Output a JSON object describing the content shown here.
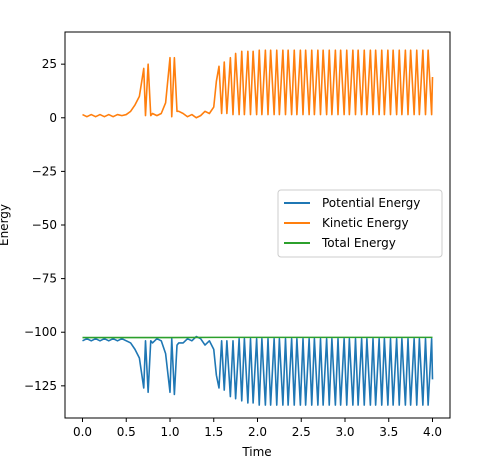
{
  "chart_data": {
    "type": "line",
    "title": "",
    "xlabel": "Time",
    "ylabel": "Energy",
    "xlim": [
      -0.2,
      4.2
    ],
    "ylim": [
      -140,
      40
    ],
    "x_ticks": [
      0.0,
      0.5,
      1.0,
      1.5,
      2.0,
      2.5,
      3.0,
      3.5,
      4.0
    ],
    "x_tick_labels": [
      "0.0",
      "0.5",
      "1.0",
      "1.5",
      "2.0",
      "2.5",
      "3.0",
      "3.5",
      "4.0"
    ],
    "y_ticks": [
      25,
      0,
      -25,
      -50,
      -75,
      -100,
      -125
    ],
    "y_tick_labels": [
      "25",
      "0",
      "−25",
      "−50",
      "−75",
      "−100",
      "−125"
    ],
    "grid": false,
    "legend_position": "center-right",
    "series": [
      {
        "name": "Potential Energy",
        "color": "#1f77b4",
        "x": [
          0.0,
          0.05,
          0.1,
          0.15,
          0.2,
          0.25,
          0.3,
          0.35,
          0.4,
          0.45,
          0.5,
          0.55,
          0.6,
          0.65,
          0.7,
          0.72,
          0.75,
          0.78,
          0.8,
          0.85,
          0.9,
          0.95,
          1.0,
          1.02,
          1.05,
          1.08,
          1.1,
          1.15,
          1.2,
          1.25,
          1.3,
          1.35,
          1.4,
          1.45,
          1.5,
          1.53,
          1.56,
          1.59,
          1.62,
          1.65,
          1.69,
          1.72,
          1.75,
          1.79,
          1.82,
          1.85,
          1.89,
          1.92,
          1.95,
          1.99,
          2.02,
          2.05,
          2.09,
          2.12,
          2.15,
          2.19,
          2.22,
          2.25,
          2.29,
          2.32,
          2.35,
          2.39,
          2.42,
          2.45,
          2.49,
          2.52,
          2.55,
          2.59,
          2.62,
          2.65,
          2.69,
          2.72,
          2.75,
          2.79,
          2.82,
          2.85,
          2.89,
          2.92,
          2.95,
          2.99,
          3.02,
          3.05,
          3.09,
          3.12,
          3.15,
          3.19,
          3.22,
          3.25,
          3.29,
          3.32,
          3.35,
          3.39,
          3.42,
          3.45,
          3.49,
          3.52,
          3.55,
          3.59,
          3.62,
          3.65,
          3.69,
          3.72,
          3.75,
          3.79,
          3.82,
          3.85,
          3.89,
          3.92,
          3.95,
          3.99,
          4.0
        ],
        "y": [
          -104,
          -103,
          -104,
          -103,
          -104,
          -103,
          -104,
          -103,
          -104,
          -103,
          -104,
          -105,
          -108,
          -112,
          -126,
          -104,
          -128,
          -104,
          -105,
          -103,
          -104,
          -110,
          -128,
          -103,
          -129,
          -106,
          -105,
          -105,
          -103,
          -104,
          -102,
          -103,
          -106,
          -104,
          -108,
          -120,
          -126,
          -104,
          -127,
          -104,
          -130,
          -104,
          -131,
          -103,
          -132,
          -103,
          -133,
          -103,
          -133,
          -103,
          -134,
          -103,
          -134,
          -103,
          -134,
          -103,
          -134,
          -103,
          -134,
          -103,
          -134,
          -103,
          -134,
          -103,
          -134,
          -103,
          -134,
          -103,
          -134,
          -103,
          -134,
          -103,
          -134,
          -103,
          -134,
          -103,
          -134,
          -103,
          -134,
          -103,
          -134,
          -103,
          -134,
          -103,
          -134,
          -103,
          -134,
          -103,
          -134,
          -103,
          -134,
          -103,
          -134,
          -103,
          -134,
          -103,
          -134,
          -103,
          -134,
          -103,
          -134,
          -103,
          -134,
          -103,
          -134,
          -103,
          -134,
          -103,
          -134,
          -103,
          -122
        ]
      },
      {
        "name": "Kinetic Energy",
        "color": "#ff7f0e",
        "x": [
          0.0,
          0.05,
          0.1,
          0.15,
          0.2,
          0.25,
          0.3,
          0.35,
          0.4,
          0.45,
          0.5,
          0.55,
          0.6,
          0.65,
          0.7,
          0.72,
          0.75,
          0.78,
          0.8,
          0.85,
          0.9,
          0.95,
          1.0,
          1.02,
          1.05,
          1.08,
          1.1,
          1.15,
          1.2,
          1.25,
          1.3,
          1.35,
          1.4,
          1.45,
          1.5,
          1.53,
          1.56,
          1.59,
          1.62,
          1.65,
          1.69,
          1.72,
          1.75,
          1.79,
          1.82,
          1.85,
          1.89,
          1.92,
          1.95,
          1.99,
          2.02,
          2.05,
          2.09,
          2.12,
          2.15,
          2.19,
          2.22,
          2.25,
          2.29,
          2.32,
          2.35,
          2.39,
          2.42,
          2.45,
          2.49,
          2.52,
          2.55,
          2.59,
          2.62,
          2.65,
          2.69,
          2.72,
          2.75,
          2.79,
          2.82,
          2.85,
          2.89,
          2.92,
          2.95,
          2.99,
          3.02,
          3.05,
          3.09,
          3.12,
          3.15,
          3.19,
          3.22,
          3.25,
          3.29,
          3.32,
          3.35,
          3.39,
          3.42,
          3.45,
          3.49,
          3.52,
          3.55,
          3.59,
          3.62,
          3.65,
          3.69,
          3.72,
          3.75,
          3.79,
          3.82,
          3.85,
          3.89,
          3.92,
          3.95,
          3.99,
          4.0
        ],
        "y": [
          1.5,
          0.5,
          1.5,
          0.5,
          1.5,
          0.5,
          1.5,
          0.5,
          1.5,
          1.0,
          1.5,
          3.0,
          6.0,
          10.0,
          23.0,
          1.0,
          25.0,
          1.0,
          2.0,
          1.0,
          2.0,
          7.0,
          28.0,
          0.5,
          28.0,
          3.0,
          3.0,
          2.0,
          0.5,
          1.5,
          0.0,
          1.0,
          3.0,
          2.0,
          5.0,
          17.0,
          24.0,
          2.0,
          26.0,
          2.0,
          28.0,
          1.5,
          30.0,
          1.5,
          31.0,
          1.5,
          31.0,
          1.5,
          31.0,
          1.5,
          31.5,
          1.5,
          31.5,
          1.5,
          31.5,
          1.5,
          31.5,
          1.5,
          31.5,
          1.5,
          31.5,
          1.5,
          31.5,
          1.5,
          31.5,
          1.5,
          31.5,
          1.5,
          31.5,
          1.5,
          31.5,
          1.5,
          31.5,
          1.5,
          31.5,
          1.5,
          31.5,
          1.5,
          31.5,
          1.5,
          31.5,
          1.5,
          31.5,
          1.5,
          31.5,
          1.5,
          31.5,
          1.5,
          31.5,
          1.5,
          31.5,
          1.5,
          31.5,
          1.5,
          31.5,
          1.5,
          31.5,
          1.5,
          31.5,
          1.5,
          31.5,
          1.5,
          31.5,
          1.5,
          31.5,
          1.5,
          31.5,
          1.5,
          31.5,
          1.5,
          19.0
        ]
      },
      {
        "name": "Total Energy",
        "color": "#2ca02c",
        "x": [
          0.0,
          0.5,
          1.0,
          1.5,
          2.0,
          2.5,
          3.0,
          3.5,
          4.0
        ],
        "y": [
          -102.5,
          -102.5,
          -102.5,
          -102.4,
          -102.4,
          -102.4,
          -102.4,
          -102.4,
          -102.4
        ]
      }
    ]
  }
}
